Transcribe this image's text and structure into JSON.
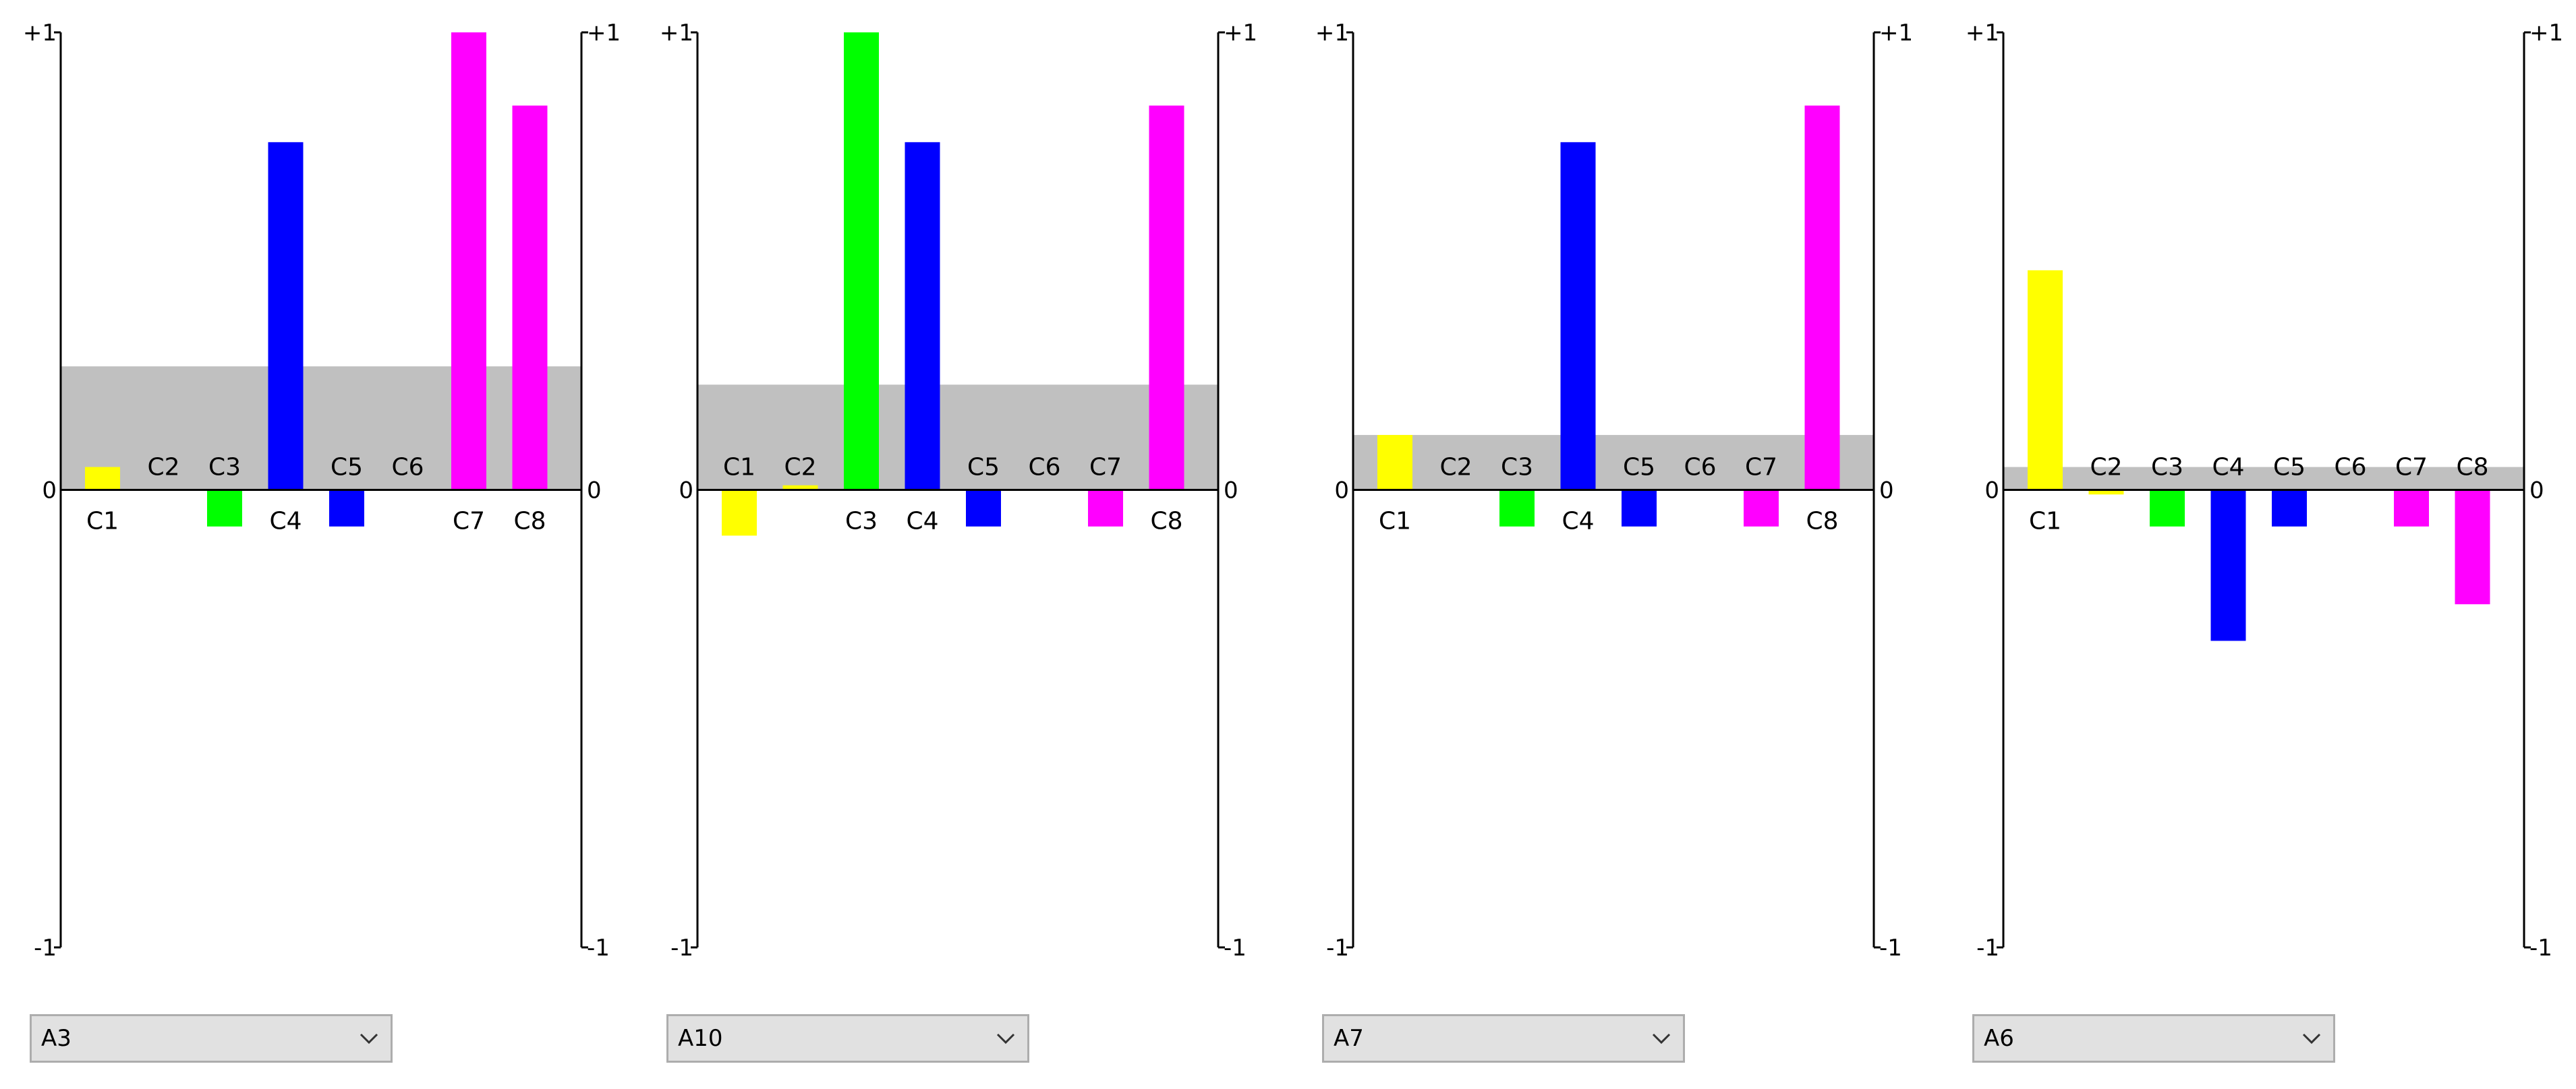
{
  "colors": {
    "C1": "#ffff00",
    "C2": "#ffff00",
    "C3": "#00ff00",
    "C4": "#0000ff",
    "C5": "#0000ff",
    "C6": "#0000ff",
    "C7": "#ff00ff",
    "C8": "#ff00ff",
    "band": "#c0c0c0",
    "axis": "#000000"
  },
  "chart_data": [
    {
      "type": "bar",
      "selector": "A3",
      "ylim": [
        -1,
        1
      ],
      "yticks": [
        "+1",
        "0",
        "-1"
      ],
      "band": 0.27,
      "categories": [
        "C1",
        "C2",
        "C3",
        "C4",
        "C5",
        "C6",
        "C7",
        "C8"
      ],
      "values": [
        0.05,
        0.0,
        -0.08,
        0.76,
        -0.08,
        0.0,
        1.0,
        0.84
      ]
    },
    {
      "type": "bar",
      "selector": "A10",
      "ylim": [
        -1,
        1
      ],
      "yticks": [
        "+1",
        "0",
        "-1"
      ],
      "band": 0.23,
      "categories": [
        "C1",
        "C2",
        "C3",
        "C4",
        "C5",
        "C6",
        "C7",
        "C8"
      ],
      "values": [
        -0.1,
        0.01,
        1.0,
        0.76,
        -0.08,
        0.0,
        -0.08,
        0.84
      ]
    },
    {
      "type": "bar",
      "selector": "A7",
      "ylim": [
        -1,
        1
      ],
      "yticks": [
        "+1",
        "0",
        "-1"
      ],
      "band": 0.12,
      "categories": [
        "C1",
        "C2",
        "C3",
        "C4",
        "C5",
        "C6",
        "C7",
        "C8"
      ],
      "values": [
        0.12,
        0.0,
        -0.08,
        0.76,
        -0.08,
        0.0,
        -0.08,
        0.84
      ]
    },
    {
      "type": "bar",
      "selector": "A6",
      "ylim": [
        -1,
        1
      ],
      "yticks": [
        "+1",
        "0",
        "-1"
      ],
      "band": 0.05,
      "categories": [
        "C1",
        "C2",
        "C3",
        "C4",
        "C5",
        "C6",
        "C7",
        "C8"
      ],
      "values": [
        0.48,
        -0.01,
        -0.08,
        -0.33,
        -0.08,
        0.0,
        -0.08,
        -0.25
      ]
    }
  ]
}
